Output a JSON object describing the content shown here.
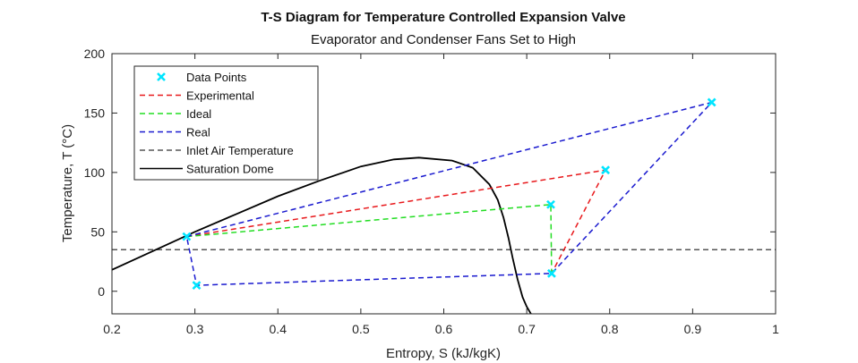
{
  "chart_data": {
    "type": "line",
    "title": "T-S Diagram for Temperature Controlled Expansion Valve",
    "subtitle": "Evaporator and Condenser Fans Set to High",
    "xlabel": "Entropy, S (kJ/kgK)",
    "ylabel": "Temperature, T (°C)",
    "xlim": [
      0.2,
      1.0
    ],
    "ylim": [
      -19,
      200
    ],
    "xticks": [
      0.2,
      0.3,
      0.4,
      0.5,
      0.6,
      0.7,
      0.8,
      0.9,
      1.0
    ],
    "xtick_labels": [
      "0.2",
      "0.3",
      "0.4",
      "0.5",
      "0.6",
      "0.7",
      "0.8",
      "0.9",
      "1"
    ],
    "yticks": [
      0,
      50,
      100,
      150,
      200
    ],
    "ytick_labels": [
      "0",
      "50",
      "100",
      "150",
      "200"
    ],
    "grid": false,
    "legend_position": "top-left",
    "legend": [
      {
        "label": "Data Points",
        "style": "marker",
        "color": "#00e5ff"
      },
      {
        "label": "Experimental",
        "style": "dashed",
        "color": "#e8191c"
      },
      {
        "label": "Ideal",
        "style": "dashed",
        "color": "#22dd22"
      },
      {
        "label": "Real",
        "style": "dashed",
        "color": "#1a1acf"
      },
      {
        "label": "Inlet Air Temperature",
        "style": "dashed",
        "color": "#555555"
      },
      {
        "label": "Saturation Dome",
        "style": "solid",
        "color": "#000000"
      }
    ],
    "series": [
      {
        "name": "Data Points",
        "type": "scatter",
        "color": "#00e5ff",
        "points": [
          [
            0.29,
            46
          ],
          [
            0.302,
            5
          ],
          [
            0.73,
            15
          ],
          [
            0.795,
            102
          ],
          [
            0.923,
            159
          ],
          [
            0.729,
            73
          ]
        ]
      },
      {
        "name": "Experimental",
        "type": "line",
        "style": "dashed",
        "color": "#e8191c",
        "points": [
          [
            0.29,
            46
          ],
          [
            0.795,
            102
          ],
          [
            0.73,
            15
          ]
        ]
      },
      {
        "name": "Ideal",
        "type": "line",
        "style": "dashed",
        "color": "#22dd22",
        "points": [
          [
            0.29,
            46
          ],
          [
            0.729,
            73
          ],
          [
            0.73,
            15
          ]
        ]
      },
      {
        "name": "Real",
        "type": "line",
        "style": "dashed",
        "color": "#1a1acf",
        "points": [
          [
            0.29,
            46
          ],
          [
            0.923,
            159
          ],
          [
            0.73,
            15
          ],
          [
            0.302,
            5
          ],
          [
            0.29,
            46
          ]
        ]
      },
      {
        "name": "Inlet Air Temperature",
        "type": "line",
        "style": "dashed",
        "color": "#555555",
        "points": [
          [
            0.2,
            35
          ],
          [
            1.0,
            35
          ]
        ]
      },
      {
        "name": "Saturation Dome",
        "type": "line",
        "style": "solid",
        "color": "#000000",
        "points": [
          [
            0.2,
            18
          ],
          [
            0.25,
            34
          ],
          [
            0.3,
            50
          ],
          [
            0.35,
            65
          ],
          [
            0.4,
            80
          ],
          [
            0.45,
            93
          ],
          [
            0.5,
            105
          ],
          [
            0.54,
            111
          ],
          [
            0.57,
            112.5
          ],
          [
            0.61,
            110
          ],
          [
            0.635,
            104
          ],
          [
            0.655,
            90
          ],
          [
            0.665,
            77
          ],
          [
            0.672,
            62
          ],
          [
            0.678,
            45
          ],
          [
            0.683,
            28
          ],
          [
            0.689,
            10
          ],
          [
            0.695,
            -5
          ],
          [
            0.7,
            -13
          ],
          [
            0.705,
            -19
          ]
        ]
      }
    ]
  }
}
